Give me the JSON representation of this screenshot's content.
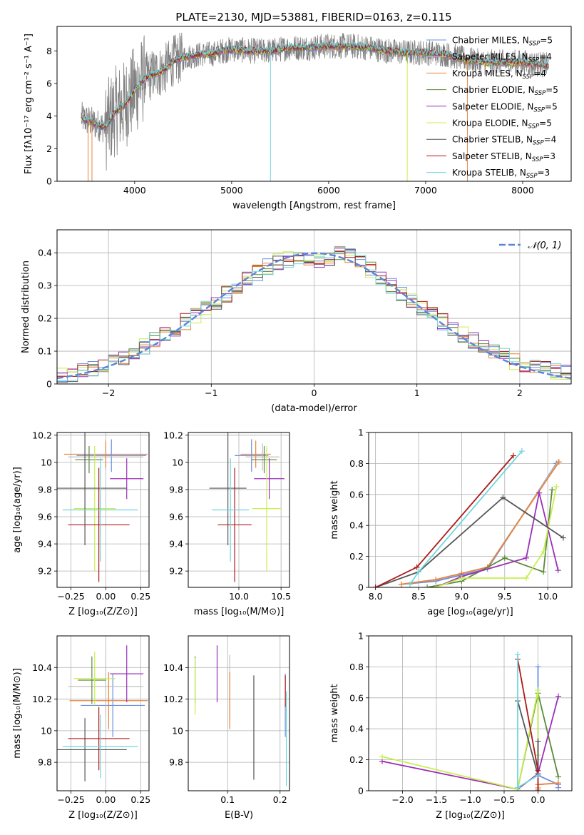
{
  "figure_title": "PLATE=2130, MJD=53881, FIBERID=0163, z=0.115",
  "colors": {
    "chabrier_miles": "#6a8ee0",
    "salpeter_miles": "#c0c0c0",
    "kroupa_miles": "#e8843c",
    "chabrier_elodie": "#5a8a3a",
    "salpeter_elodie": "#9b30b8",
    "kroupa_elodie": "#c8ee50",
    "chabrier_stelib": "#555555",
    "salpeter_stelib": "#b01818",
    "kroupa_stelib": "#6fd6dc",
    "observed": "#808080",
    "gaussian": "#5b84d8",
    "grid": "#b0b0b0"
  },
  "chart_data": [
    {
      "id": "spectrum",
      "type": "line",
      "xlabel": "wavelength [Angstrom, rest frame]",
      "ylabel": "Flux [fλ10⁻¹⁷ erg cm⁻² s⁻¹ A⁻¹]",
      "xlim": [
        3200,
        8500
      ],
      "ylim": [
        0,
        9.5
      ],
      "xticks": [
        4000,
        5000,
        6000,
        7000,
        8000
      ],
      "yticks": [
        0,
        2,
        4,
        6,
        8
      ],
      "grid": false,
      "legend_position": "right",
      "continuum": {
        "x": [
          3450,
          3600,
          3700,
          3800,
          3900,
          4000,
          4100,
          4200,
          4300,
          4400,
          4500,
          4600,
          4700,
          4800,
          4900,
          5000,
          5200,
          5400,
          5600,
          5800,
          6000,
          6200,
          6400,
          6600,
          6800,
          7000,
          7200,
          7400,
          7600,
          7800,
          8000,
          8270
        ],
        "y": [
          3.9,
          3.5,
          3.3,
          4.3,
          4.7,
          5.6,
          6.3,
          6.6,
          6.8,
          7.4,
          7.6,
          7.7,
          7.8,
          7.8,
          8.0,
          8.1,
          8.0,
          8.0,
          8.2,
          8.2,
          8.3,
          8.3,
          8.2,
          8.0,
          7.9,
          7.9,
          7.8,
          7.5,
          7.3,
          7.3,
          7.3,
          7.1
        ]
      },
      "legend": [
        {
          "label": "Chabrier MILES, N",
          "sub": "SSP",
          "tail": "=5",
          "color_key": "chabrier_miles"
        },
        {
          "label": "Salpeter MILES, N",
          "sub": "SSP",
          "tail": "=4",
          "color_key": "salpeter_miles"
        },
        {
          "label": "Kroupa MILES, N",
          "sub": "SSP",
          "tail": "=4",
          "color_key": "kroupa_miles"
        },
        {
          "label": "Chabrier ELODIE, N",
          "sub": "SSP",
          "tail": "=5",
          "color_key": "chabrier_elodie"
        },
        {
          "label": "Salpeter ELODIE, N",
          "sub": "SSP",
          "tail": "=5",
          "color_key": "salpeter_elodie"
        },
        {
          "label": "Kroupa ELODIE, N",
          "sub": "SSP",
          "tail": "=5",
          "color_key": "kroupa_elodie"
        },
        {
          "label": "Chabrier STELIB, N",
          "sub": "SSP",
          "tail": "=4",
          "color_key": "chabrier_stelib"
        },
        {
          "label": "Salpeter STELIB, N",
          "sub": "SSP",
          "tail": "=3",
          "color_key": "salpeter_stelib"
        },
        {
          "label": "Kroupa STELIB, N",
          "sub": "SSP",
          "tail": "=3",
          "color_key": "kroupa_stelib"
        }
      ]
    },
    {
      "id": "residuals",
      "type": "line",
      "xlabel": "(data-model)/error",
      "ylabel": "Normed distribution",
      "xlim": [
        -2.5,
        2.5
      ],
      "ylim": [
        0,
        0.47
      ],
      "xticks": [
        -2,
        -1,
        0,
        1,
        2
      ],
      "yticks": [
        0.0,
        0.1,
        0.2,
        0.3,
        0.4
      ],
      "grid": true,
      "legend_position": "top-right",
      "gaussian_label": "𝒩(0, 1)",
      "bin_width": 0.1,
      "histogram_envelope": {
        "x": [
          -2.5,
          -2.0,
          -1.5,
          -1.0,
          -0.5,
          -0.3,
          0.0,
          0.3,
          0.5,
          1.0,
          1.5,
          2.0,
          2.5
        ],
        "y": [
          0.02,
          0.06,
          0.14,
          0.24,
          0.35,
          0.38,
          0.37,
          0.4,
          0.36,
          0.24,
          0.14,
          0.06,
          0.03
        ]
      }
    },
    {
      "id": "age_vs_Z",
      "type": "scatter",
      "xlabel": "Z [log₁₀(Z/Z⊙)]",
      "ylabel": "age  [log₁₀(age/yr)]",
      "xlim": [
        -0.35,
        0.31
      ],
      "ylim": [
        9.08,
        10.22
      ],
      "xticks": [
        -0.25,
        0.0,
        0.25
      ],
      "xticklabels": [
        "−0.25",
        "0.00",
        "0.25"
      ],
      "yticks": [
        9.2,
        9.4,
        9.6,
        9.8,
        10.0,
        10.2
      ],
      "grid": true,
      "points": [
        {
          "c": "chabrier_miles",
          "x": 0.04,
          "xe": 0.25,
          "y": 10.05,
          "ye": 0.12
        },
        {
          "c": "salpeter_miles",
          "x": 0.0,
          "xe": 0.27,
          "y": 10.04,
          "ye": 0.1
        },
        {
          "c": "kroupa_miles",
          "x": 0.0,
          "xe": 0.3,
          "y": 10.06,
          "ye": 0.1
        },
        {
          "c": "chabrier_elodie",
          "x": -0.12,
          "xe": 0.1,
          "y": 10.02,
          "ye": 0.1
        },
        {
          "c": "salpeter_elodie",
          "x": 0.15,
          "xe": 0.12,
          "y": 9.88,
          "ye": 0.15
        },
        {
          "c": "kroupa_elodie",
          "x": -0.08,
          "xe": 0.15,
          "y": 9.66,
          "ye": 0.46
        },
        {
          "c": "chabrier_stelib",
          "x": -0.15,
          "xe": 0.3,
          "y": 9.81,
          "ye": 0.42
        },
        {
          "c": "salpeter_stelib",
          "x": -0.05,
          "xe": 0.22,
          "y": 9.54,
          "ye": 0.42
        },
        {
          "c": "kroupa_stelib",
          "x": -0.04,
          "xe": 0.27,
          "y": 9.65,
          "ye": 0.38
        }
      ]
    },
    {
      "id": "age_vs_mass",
      "type": "scatter",
      "xlabel": "mass [log₁₀(M/M⊙)]",
      "xlim": [
        9.4,
        10.6
      ],
      "ylim": [
        9.08,
        10.22
      ],
      "xticks": [
        10.0,
        10.5
      ],
      "xticklabels": [
        "10.0",
        "10.5"
      ],
      "yticks": [
        9.2,
        9.4,
        9.6,
        9.8,
        10.0,
        10.2
      ],
      "grid": true,
      "points": [
        {
          "c": "chabrier_miles",
          "x": 10.15,
          "xe": 0.2,
          "y": 10.05,
          "ye": 0.12
        },
        {
          "c": "salpeter_miles",
          "x": 10.28,
          "xe": 0.2,
          "y": 10.04,
          "ye": 0.1
        },
        {
          "c": "kroupa_miles",
          "x": 10.2,
          "xe": 0.18,
          "y": 10.06,
          "ye": 0.1
        },
        {
          "c": "chabrier_elodie",
          "x": 10.3,
          "xe": 0.15,
          "y": 10.02,
          "ye": 0.1
        },
        {
          "c": "salpeter_elodie",
          "x": 10.36,
          "xe": 0.18,
          "y": 9.88,
          "ye": 0.15
        },
        {
          "c": "kroupa_elodie",
          "x": 10.33,
          "xe": 0.17,
          "y": 9.66,
          "ye": 0.46
        },
        {
          "c": "chabrier_stelib",
          "x": 9.87,
          "xe": 0.22,
          "y": 9.81,
          "ye": 0.42
        },
        {
          "c": "salpeter_stelib",
          "x": 9.95,
          "xe": 0.2,
          "y": 9.54,
          "ye": 0.42
        },
        {
          "c": "kroupa_stelib",
          "x": 9.9,
          "xe": 0.22,
          "y": 9.65,
          "ye": 0.38
        }
      ]
    },
    {
      "id": "weight_vs_age",
      "type": "line",
      "xlabel": "age  [log₁₀(age/yr)]",
      "ylabel": "mass weight",
      "xlim": [
        7.92,
        10.28
      ],
      "ylim": [
        0,
        1
      ],
      "xticks": [
        8.0,
        8.5,
        9.0,
        9.5,
        10.0
      ],
      "xticklabels": [
        "8.0",
        "8.5",
        "9.0",
        "9.5",
        "10.0"
      ],
      "yticks": [
        0.0,
        0.2,
        0.4,
        0.6,
        0.8,
        1.0
      ],
      "grid": true,
      "series": [
        {
          "c": "chabrier_miles",
          "x": [
            8.3,
            8.7,
            9.0,
            9.3,
            10.1
          ],
          "y": [
            0.02,
            0.04,
            0.08,
            0.12,
            0.8
          ]
        },
        {
          "c": "salpeter_miles",
          "x": [
            8.3,
            8.7,
            9.0,
            9.3,
            10.12
          ],
          "y": [
            0.02,
            0.05,
            0.09,
            0.13,
            0.81
          ]
        },
        {
          "c": "kroupa_miles",
          "x": [
            8.3,
            8.7,
            9.0,
            9.3,
            10.13
          ],
          "y": [
            0.02,
            0.05,
            0.09,
            0.13,
            0.81
          ]
        },
        {
          "c": "chabrier_elodie",
          "x": [
            8.6,
            9.0,
            9.5,
            9.95,
            10.05
          ],
          "y": [
            0.0,
            0.04,
            0.19,
            0.1,
            0.63
          ]
        },
        {
          "c": "salpeter_elodie",
          "x": [
            8.7,
            9.0,
            9.75,
            9.9,
            10.12
          ],
          "y": [
            0.0,
            0.07,
            0.19,
            0.61,
            0.11
          ]
        },
        {
          "c": "kroupa_elodie",
          "x": [
            8.7,
            9.0,
            9.75,
            9.95,
            10.1
          ],
          "y": [
            0.0,
            0.06,
            0.06,
            0.23,
            0.65
          ]
        },
        {
          "c": "chabrier_stelib",
          "x": [
            8.0,
            8.5,
            9.48,
            10.18
          ],
          "y": [
            0.0,
            0.1,
            0.58,
            0.32
          ]
        },
        {
          "c": "salpeter_stelib",
          "x": [
            8.0,
            8.48,
            9.6
          ],
          "y": [
            0.0,
            0.13,
            0.85
          ]
        },
        {
          "c": "kroupa_stelib",
          "x": [
            8.4,
            8.5,
            9.7
          ],
          "y": [
            0.02,
            0.1,
            0.88
          ]
        }
      ]
    },
    {
      "id": "mass_vs_Z",
      "type": "scatter",
      "xlabel": "Z [log₁₀(Z/Z⊙)]",
      "ylabel": "mass [log₁₀(M/M⊙)]",
      "xlim": [
        -0.35,
        0.31
      ],
      "ylim": [
        9.62,
        10.6
      ],
      "xticks": [
        -0.25,
        0.0,
        0.25
      ],
      "xticklabels": [
        "−0.25",
        "0.00",
        "0.25"
      ],
      "yticks": [
        9.8,
        10.0,
        10.2,
        10.4
      ],
      "grid": true,
      "points": [
        {
          "c": "chabrier_miles",
          "x": 0.05,
          "xe": 0.23,
          "y": 10.16,
          "ye": 0.2
        },
        {
          "c": "salpeter_miles",
          "x": 0.0,
          "xe": 0.27,
          "y": 10.28,
          "ye": 0.2
        },
        {
          "c": "kroupa_miles",
          "x": 0.02,
          "xe": 0.28,
          "y": 10.19,
          "ye": 0.18
        },
        {
          "c": "chabrier_elodie",
          "x": -0.1,
          "xe": 0.1,
          "y": 10.32,
          "ye": 0.15
        },
        {
          "c": "salpeter_elodie",
          "x": 0.15,
          "xe": 0.12,
          "y": 10.36,
          "ye": 0.18
        },
        {
          "c": "kroupa_elodie",
          "x": -0.08,
          "xe": 0.15,
          "y": 10.33,
          "ye": 0.17
        },
        {
          "c": "chabrier_stelib",
          "x": -0.15,
          "xe": 0.3,
          "y": 9.88,
          "ye": 0.2
        },
        {
          "c": "salpeter_stelib",
          "x": -0.05,
          "xe": 0.22,
          "y": 9.95,
          "ye": 0.2
        },
        {
          "c": "kroupa_stelib",
          "x": -0.04,
          "xe": 0.27,
          "y": 9.9,
          "ye": 0.2
        }
      ]
    },
    {
      "id": "mass_vs_EBV",
      "type": "scatter",
      "xlabel": "E(B-V)",
      "xlim": [
        0.025,
        0.218
      ],
      "ylim": [
        9.62,
        10.6
      ],
      "xticks": [
        0.1,
        0.2
      ],
      "xticklabels": [
        "0.1",
        "0.2"
      ],
      "yticks": [
        9.8,
        10.0,
        10.2,
        10.4
      ],
      "grid": true,
      "points": [
        {
          "c": "chabrier_miles",
          "x": 0.21,
          "y": 10.16,
          "ye": 0.2
        },
        {
          "c": "salpeter_miles",
          "x": 0.104,
          "y": 10.28,
          "ye": 0.2
        },
        {
          "c": "kroupa_miles",
          "x": 0.104,
          "y": 10.19,
          "ye": 0.18
        },
        {
          "c": "chabrier_elodie",
          "x": 0.038,
          "y": 10.32,
          "ye": 0.15
        },
        {
          "c": "salpeter_elodie",
          "x": 0.08,
          "y": 10.36,
          "ye": 0.18
        },
        {
          "c": "kroupa_elodie",
          "x": 0.038,
          "y": 10.28,
          "ye": 0.18
        },
        {
          "c": "chabrier_stelib",
          "x": 0.15,
          "y": 10.02,
          "ye": 0.33
        },
        {
          "c": "salpeter_stelib",
          "x": 0.21,
          "y": 10.25,
          "ye": 0.1
        },
        {
          "c": "kroupa_stelib",
          "x": 0.212,
          "y": 9.95,
          "ye": 0.3
        }
      ]
    },
    {
      "id": "weight_vs_Z",
      "type": "line",
      "xlabel": "Z [log₁₀(Z/Z⊙)]",
      "ylabel": "mass weight",
      "xlim": [
        -2.5,
        0.5
      ],
      "ylim": [
        0,
        1
      ],
      "xticks": [
        -2.0,
        -1.5,
        -1.0,
        -0.5,
        0.0
      ],
      "xticklabels": [
        "−2.0",
        "−1.5",
        "−1.0",
        "−0.5",
        "0.0"
      ],
      "yticks": [
        0.0,
        0.2,
        0.4,
        0.6,
        0.8,
        1.0
      ],
      "grid": true,
      "series": [
        {
          "c": "chabrier_miles",
          "x": [
            0.0,
            0.0,
            0.3,
            0.3
          ],
          "y": [
            0.8,
            0.1,
            0.04,
            0.02
          ]
        },
        {
          "c": "salpeter_miles",
          "x": [
            0.0,
            0.0,
            0.3
          ],
          "y": [
            0.02,
            0.04,
            0.05
          ]
        },
        {
          "c": "kroupa_miles",
          "x": [
            0.0,
            0.0,
            0.3
          ],
          "y": [
            0.01,
            0.04,
            0.05
          ]
        },
        {
          "c": "chabrier_elodie",
          "x": [
            -0.3,
            0.0,
            0.3
          ],
          "y": [
            0.01,
            0.63,
            0.09
          ]
        },
        {
          "c": "salpeter_elodie",
          "x": [
            -2.3,
            -0.3,
            0.0,
            0.3
          ],
          "y": [
            0.19,
            0.01,
            0.11,
            0.61
          ]
        },
        {
          "c": "kroupa_elodie",
          "x": [
            -2.3,
            -0.3,
            0.0,
            0.0
          ],
          "y": [
            0.22,
            0.01,
            0.65,
            0.23
          ]
        },
        {
          "c": "chabrier_stelib",
          "x": [
            -0.3,
            0.0,
            0.0
          ],
          "y": [
            0.58,
            0.1,
            0.32
          ]
        },
        {
          "c": "salpeter_stelib",
          "x": [
            -0.3,
            0.0,
            0.0
          ],
          "y": [
            0.85,
            0.13,
            0.0
          ]
        },
        {
          "c": "kroupa_stelib",
          "x": [
            -0.3,
            -0.3,
            0.0
          ],
          "y": [
            0.88,
            0.02,
            0.1
          ]
        }
      ]
    }
  ]
}
